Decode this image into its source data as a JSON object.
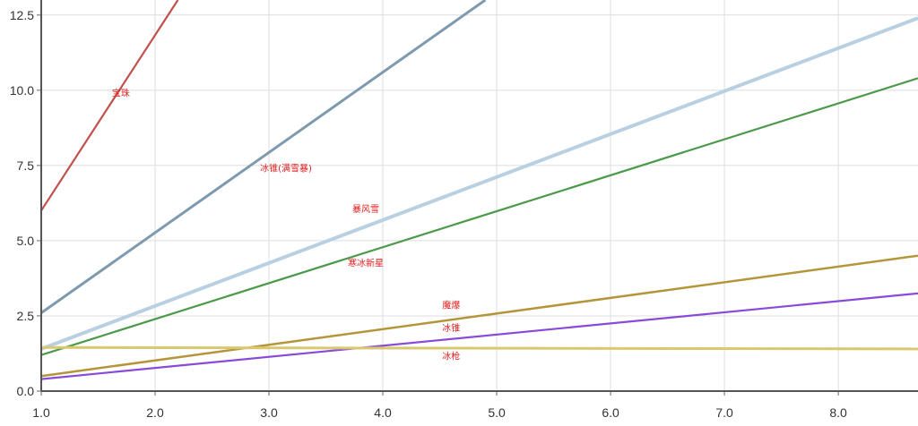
{
  "chart_data": {
    "type": "line",
    "xlim": [
      1.0,
      8.7
    ],
    "ylim": [
      0,
      13.0
    ],
    "x_ticks": [
      "1.0",
      "2.0",
      "3.0",
      "4.0",
      "5.0",
      "6.0",
      "7.0",
      "8.0"
    ],
    "y_ticks": [
      "0.0",
      "2.5",
      "5.0",
      "7.5",
      "10.0",
      "12.5"
    ],
    "grid": true,
    "series": [
      {
        "name": "宝珠",
        "color": "#c0504d",
        "x": [
          1.0,
          2.2
        ],
        "y": [
          6.0,
          13.0
        ]
      },
      {
        "name": "冰锥(满雪暴)",
        "color": "#7f9aaf",
        "x": [
          1.0,
          4.9
        ],
        "y": [
          2.6,
          13.0
        ]
      },
      {
        "name": "暴风雪",
        "color": "#b8d0e2",
        "x": [
          1.0,
          8.7
        ],
        "y": [
          1.4,
          12.4
        ]
      },
      {
        "name": "寒冰新星",
        "color": "#4a9a4a",
        "x": [
          1.0,
          8.7
        ],
        "y": [
          1.2,
          10.4
        ]
      },
      {
        "name": "魔爆",
        "color": "#b5953a",
        "x": [
          1.0,
          8.7
        ],
        "y": [
          0.5,
          4.5
        ]
      },
      {
        "name": "冰锥",
        "color": "#8a4ad8",
        "x": [
          1.0,
          8.7
        ],
        "y": [
          0.4,
          3.25
        ]
      },
      {
        "name": "冰枪",
        "color": "#d9c870",
        "x": [
          1.0,
          8.7
        ],
        "y": [
          1.45,
          1.4
        ]
      }
    ],
    "labels": [
      {
        "text": "宝珠",
        "x": 1.7,
        "y": 9.8
      },
      {
        "text": "冰锥(满雪暴)",
        "x": 3.15,
        "y": 7.3
      },
      {
        "text": "暴风雪",
        "x": 3.85,
        "y": 5.95
      },
      {
        "text": "寒冰新星",
        "x": 3.85,
        "y": 4.15
      },
      {
        "text": "魔爆",
        "x": 4.6,
        "y": 2.75
      },
      {
        "text": "冰锥",
        "x": 4.6,
        "y": 2.0
      },
      {
        "text": "冰枪",
        "x": 4.6,
        "y": 1.05
      }
    ]
  }
}
